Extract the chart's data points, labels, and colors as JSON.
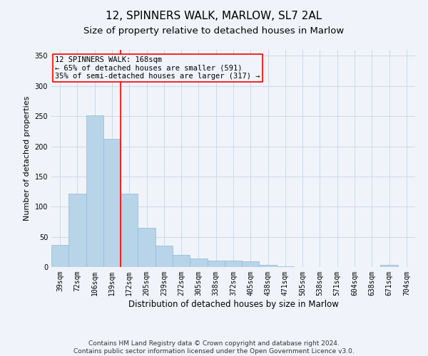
{
  "title1": "12, SPINNERS WALK, MARLOW, SL7 2AL",
  "title2": "Size of property relative to detached houses in Marlow",
  "xlabel": "Distribution of detached houses by size in Marlow",
  "ylabel": "Number of detached properties",
  "categories": [
    "39sqm",
    "72sqm",
    "106sqm",
    "139sqm",
    "172sqm",
    "205sqm",
    "239sqm",
    "272sqm",
    "305sqm",
    "338sqm",
    "372sqm",
    "405sqm",
    "438sqm",
    "471sqm",
    "505sqm",
    "538sqm",
    "571sqm",
    "604sqm",
    "638sqm",
    "671sqm",
    "704sqm"
  ],
  "values": [
    37,
    122,
    252,
    212,
    122,
    65,
    35,
    20,
    14,
    11,
    11,
    9,
    4,
    1,
    0,
    0,
    0,
    0,
    0,
    4,
    0
  ],
  "bar_color": "#b8d4e8",
  "bar_edge_color": "#90b8d8",
  "marker_label_line1": "12 SPINNERS WALK: 168sqm",
  "marker_label_line2": "← 65% of detached houses are smaller (591)",
  "marker_label_line3": "35% of semi-detached houses are larger (317) →",
  "annotation_box_color": "red",
  "grid_color": "#ccd8e8",
  "background_color": "#f0f4fa",
  "ylim": [
    0,
    360
  ],
  "yticks": [
    0,
    50,
    100,
    150,
    200,
    250,
    300,
    350
  ],
  "footnote1": "Contains HM Land Registry data © Crown copyright and database right 2024.",
  "footnote2": "Contains public sector information licensed under the Open Government Licence v3.0.",
  "title1_fontsize": 11,
  "title2_fontsize": 9.5,
  "xlabel_fontsize": 8.5,
  "ylabel_fontsize": 8,
  "tick_fontsize": 7,
  "footnote_fontsize": 6.5
}
